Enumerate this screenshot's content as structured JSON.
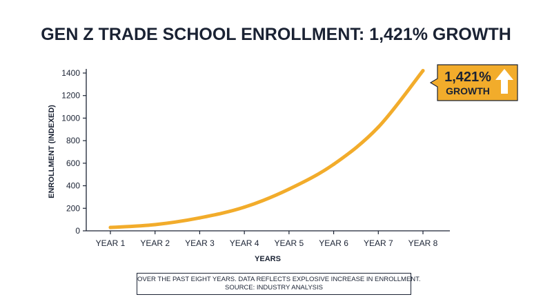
{
  "colors": {
    "text": "#1a2233",
    "line": "#f2ac2b",
    "callout_bg": "#f2ac2b",
    "arrow": "#ffffff"
  },
  "callout": {
    "value": "1,421%",
    "label": "GROWTH",
    "icon": "arrow-up-icon"
  },
  "footnote": {
    "line1": "OVER THE PAST EIGHT YEARS. DATA REFLECTS EXPLOSIVE INCREASE IN ENROLLMENT.",
    "line2": "SOURCE: INDUSTRY ANALYSIS"
  },
  "chart_data": {
    "type": "line",
    "title": "GEN Z TRADE SCHOOL ENROLLMENT: 1,421% GROWTH",
    "xlabel": "YEARS",
    "ylabel": "ENROLLMENT (INDEXED)",
    "categories": [
      "YEAR 1",
      "YEAR 2",
      "YEAR 3",
      "YEAR 4",
      "YEAR 5",
      "YEAR 6",
      "YEAR 7",
      "YEAR 8"
    ],
    "series": [
      {
        "values": [
          30,
          55,
          115,
          210,
          370,
          590,
          920,
          1421
        ]
      }
    ],
    "ylim": [
      0,
      1400
    ],
    "yticks": [
      0,
      200,
      400,
      600,
      800,
      1000,
      1200,
      1400
    ],
    "grid": false
  }
}
